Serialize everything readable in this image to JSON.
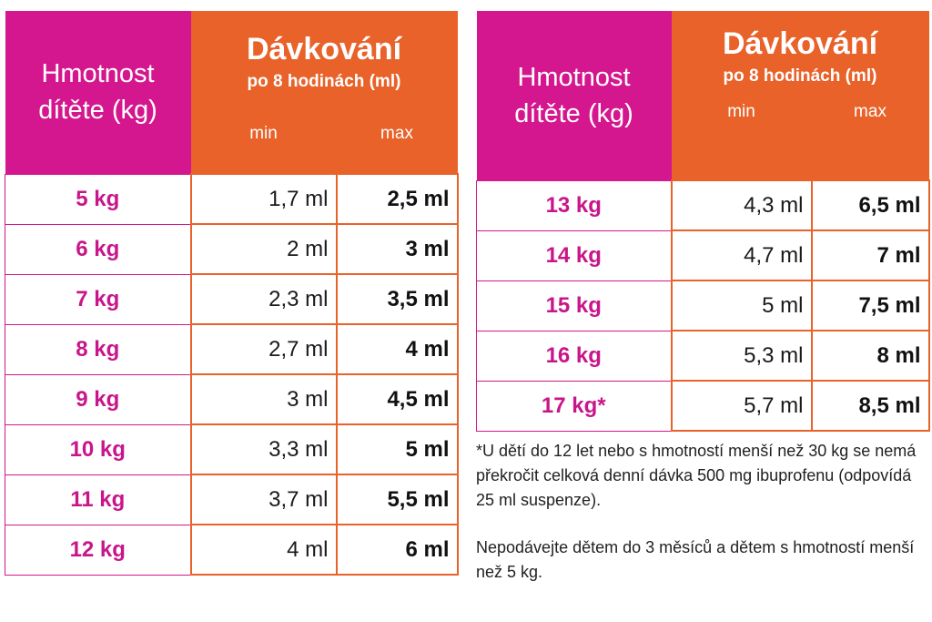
{
  "header": {
    "weight_line1": "Hmotnost",
    "weight_line2": "dítěte (kg)",
    "dose_title": "Dávkování",
    "dose_sub": "po 8 hodinách (ml)",
    "col_min": "min",
    "col_max": "max"
  },
  "table_left": {
    "rows": [
      {
        "weight": "5 kg",
        "min": "1,7 ml",
        "max": "2,5 ml"
      },
      {
        "weight": "6 kg",
        "min": "2 ml",
        "max": "3 ml"
      },
      {
        "weight": "7 kg",
        "min": "2,3 ml",
        "max": "3,5 ml"
      },
      {
        "weight": "8 kg",
        "min": "2,7 ml",
        "max": "4 ml"
      },
      {
        "weight": "9 kg",
        "min": "3 ml",
        "max": "4,5 ml"
      },
      {
        "weight": "10 kg",
        "min": "3,3 ml",
        "max": "5 ml"
      },
      {
        "weight": "11 kg",
        "min": "3,7 ml",
        "max": "5,5 ml"
      },
      {
        "weight": "12 kg",
        "min": "4 ml",
        "max": "6 ml"
      }
    ]
  },
  "table_right": {
    "rows": [
      {
        "weight": "13 kg",
        "min": "4,3 ml",
        "max": "6,5 ml"
      },
      {
        "weight": "14 kg",
        "min": "4,7 ml",
        "max": "7 ml"
      },
      {
        "weight": "15 kg",
        "min": "5 ml",
        "max": "7,5 ml"
      },
      {
        "weight": "16 kg",
        "min": "5,3 ml",
        "max": "8 ml"
      },
      {
        "weight": "17 kg*",
        "min": "5,7 ml",
        "max": "8,5 ml"
      }
    ]
  },
  "notes": {
    "footnote": "*U dětí do 12 let nebo s hmotností menší než 30 kg se nemá překročit celková denní dávka 500 mg ibuprofenu (odpovídá 25 ml suspenze).",
    "warning": "Nepodávejte dětem do 3 měsíců a dětem s hmotností menší než 5 kg."
  },
  "colors": {
    "magenta": "#d4178e",
    "orange": "#e8622a"
  }
}
